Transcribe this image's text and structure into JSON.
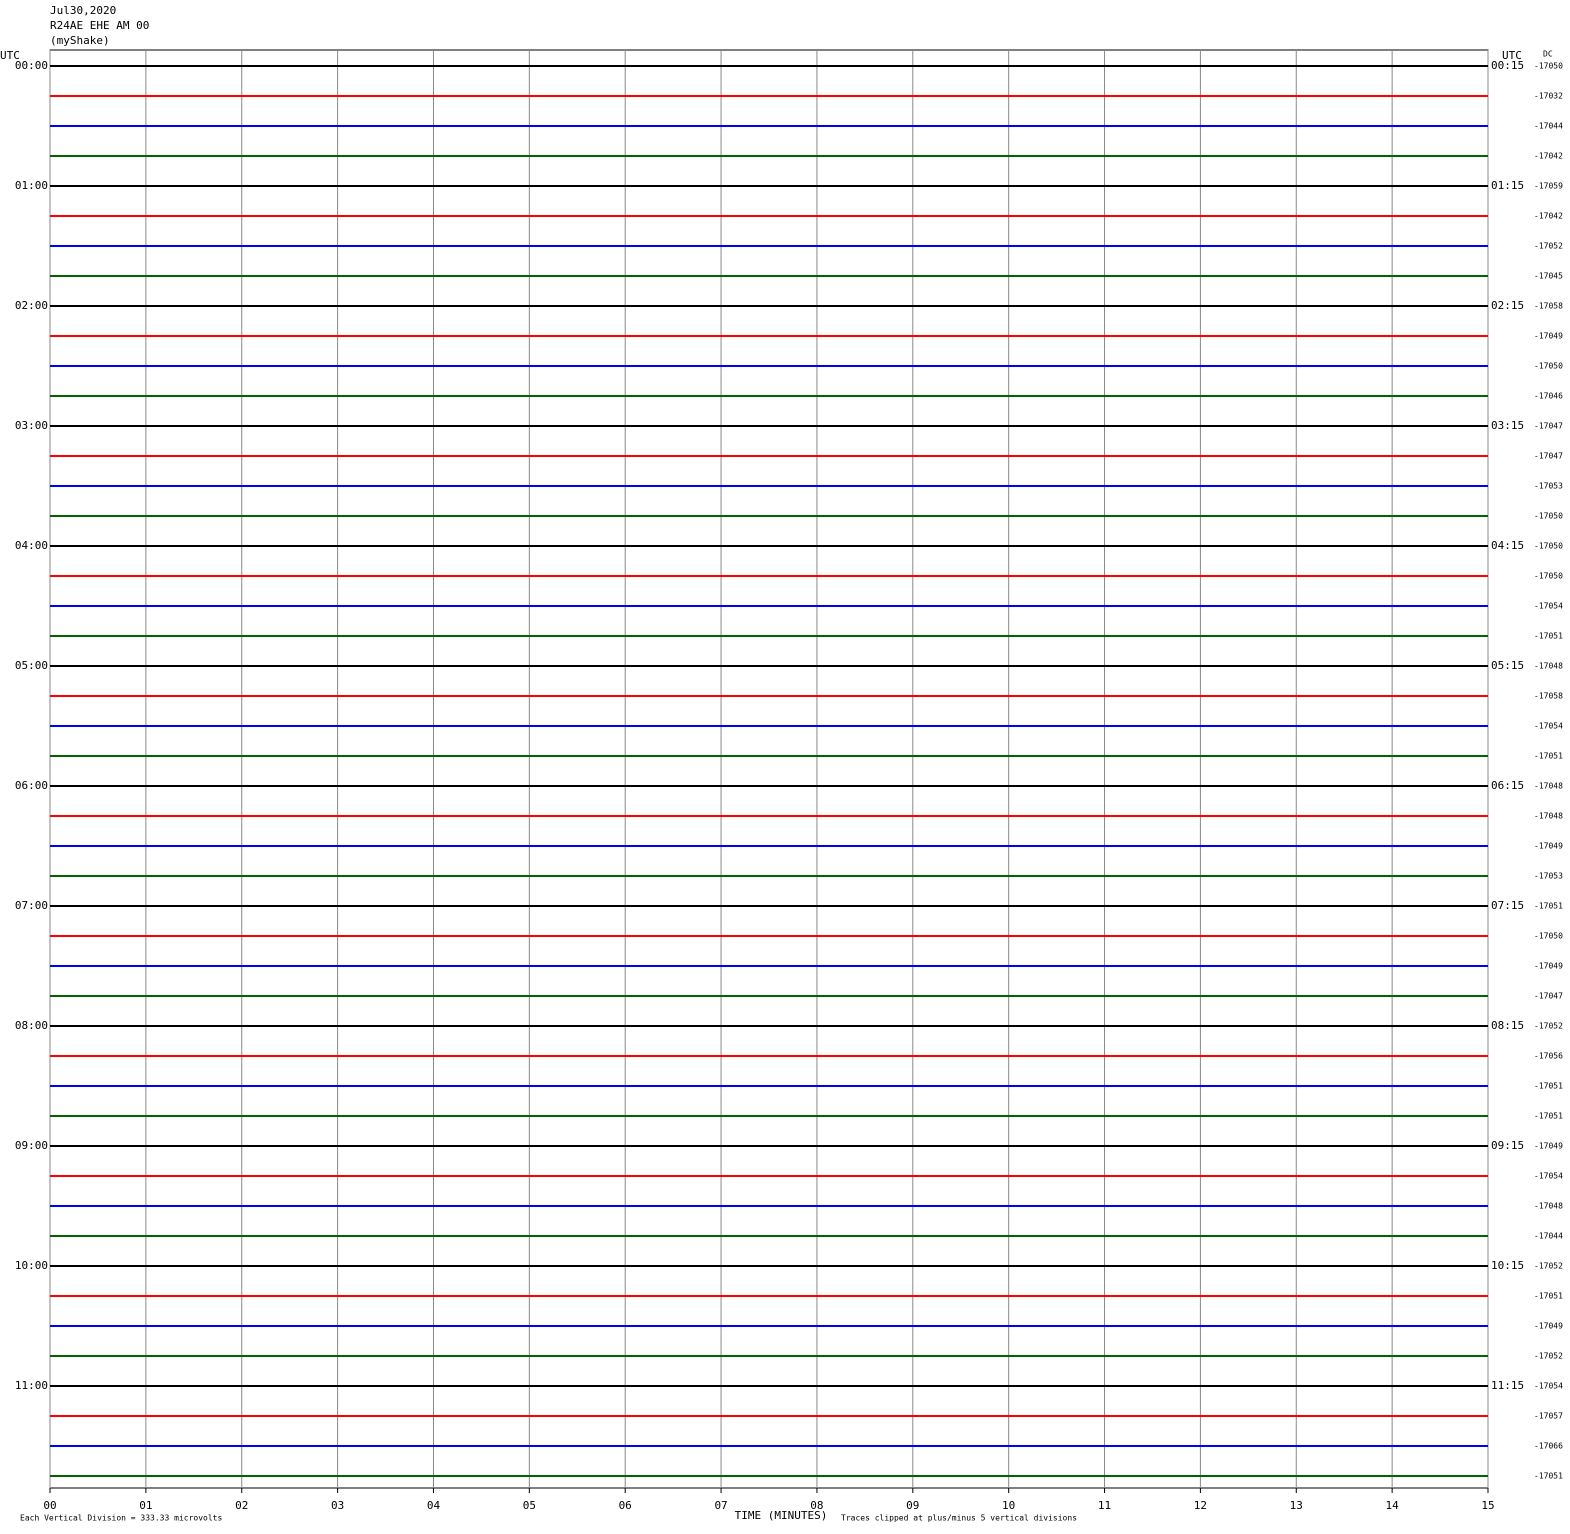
{
  "chart_data": {
    "type": "seismogram",
    "date": "Jul30,2020",
    "station": "R24AE EHE AM 00",
    "network": "(myShake)",
    "left_axis_label": "UTC",
    "right_axis_label": "UTC",
    "dc_label": "DC",
    "xlabel": "TIME (MINUTES)",
    "scale_note": "Each Vertical Division =  333.33 microvolts",
    "clip_note": "Traces clipped at plus/minus 5 vertical divisions",
    "xlim": [
      0,
      15
    ],
    "xticks": [
      {
        "value": 0,
        "label": "00"
      },
      {
        "value": 1,
        "label": "01"
      },
      {
        "value": 2,
        "label": "02"
      },
      {
        "value": 3,
        "label": "03"
      },
      {
        "value": 4,
        "label": "04"
      },
      {
        "value": 5,
        "label": "05"
      },
      {
        "value": 6,
        "label": "06"
      },
      {
        "value": 7,
        "label": "07"
      },
      {
        "value": 8,
        "label": "08"
      },
      {
        "value": 9,
        "label": "09"
      },
      {
        "value": 10,
        "label": "10"
      },
      {
        "value": 11,
        "label": "11"
      },
      {
        "value": 12,
        "label": "12"
      },
      {
        "value": 13,
        "label": "13"
      },
      {
        "value": 14,
        "label": "14"
      },
      {
        "value": 15,
        "label": "15"
      }
    ],
    "grid": true,
    "trace_colors": [
      "#000000",
      "#ff0000",
      "#0000ff",
      "#006400"
    ],
    "left_times": [
      "00:00",
      "01:00",
      "02:00",
      "03:00",
      "04:00",
      "05:00",
      "06:00",
      "07:00",
      "08:00",
      "09:00",
      "10:00",
      "11:00"
    ],
    "right_times": [
      "00:15",
      "01:15",
      "02:15",
      "03:15",
      "04:15",
      "05:15",
      "06:15",
      "07:15",
      "08:15",
      "09:15",
      "10:15",
      "11:15"
    ],
    "dc_values": [
      -17050,
      -17032,
      -17044,
      -17042,
      -17059,
      -17042,
      -17052,
      -17045,
      -17058,
      -17049,
      -17050,
      -17046,
      -17047,
      -17047,
      -17053,
      -17050,
      -17050,
      -17050,
      -17054,
      -17051,
      -17048,
      -17058,
      -17054,
      -17051,
      -17048,
      -17048,
      -17049,
      -17053,
      -17051,
      -17050,
      -17049,
      -17047,
      -17052,
      -17056,
      -17051,
      -17051,
      -17049,
      -17054,
      -17048,
      -17044,
      -17052,
      -17051,
      -17049,
      -17052,
      -17054,
      -17057,
      -17066,
      -17051
    ]
  }
}
